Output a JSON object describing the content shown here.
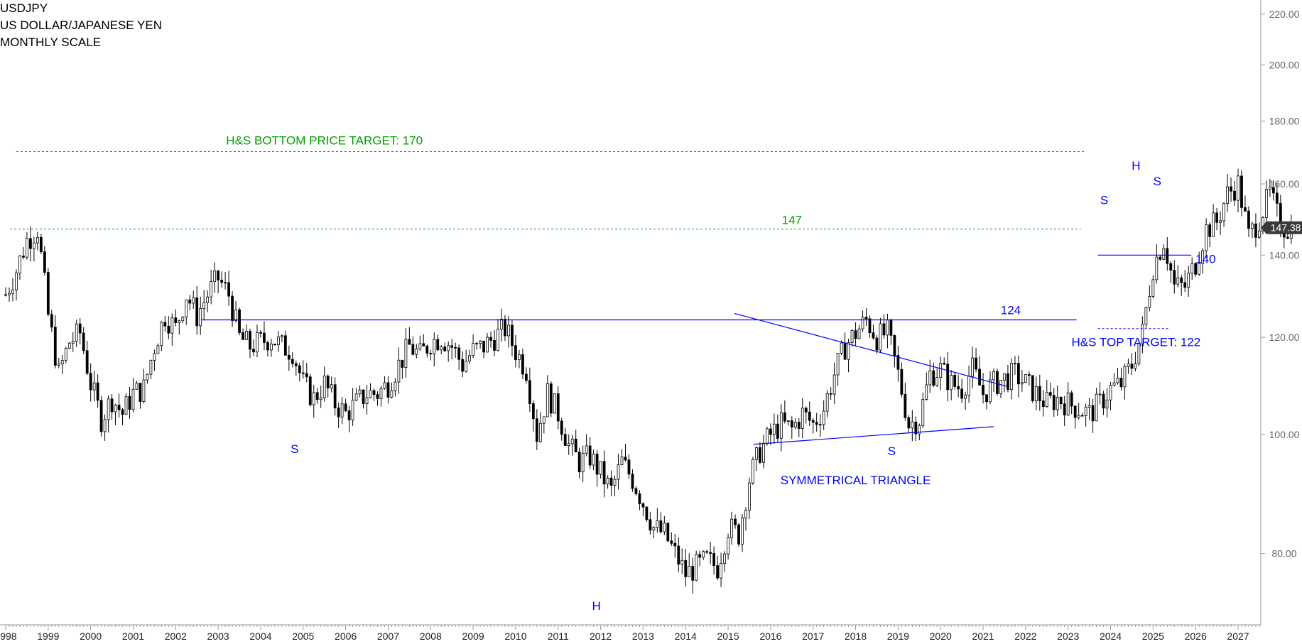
{
  "chart_data": {
    "type": "candlestick",
    "title": "USDJPY",
    "subtitle": [
      "US DOLLAR/JAPANESE YEN",
      "MONTHLY SCALE"
    ],
    "x_range": [
      1998.0,
      2027.5
    ],
    "ylim": [
      70,
      222
    ],
    "y_scale": "log",
    "y_ticks": [
      "80.00",
      "100.00",
      "120.00",
      "140.00",
      "160.00",
      "180.00",
      "200.00",
      "220.00"
    ],
    "x_ticks": [
      "1998",
      "1999",
      "2000",
      "2001",
      "2002",
      "2003",
      "2004",
      "2005",
      "2006",
      "2007",
      "2008",
      "2009",
      "2010",
      "2011",
      "2012",
      "2013",
      "2014",
      "2015",
      "2016",
      "2017",
      "2018",
      "2019",
      "2020",
      "2021",
      "2022",
      "2023",
      "2024",
      "2025",
      "2026",
      "2027"
    ],
    "last_price_label": "147.38",
    "last_price": 147.38,
    "price_path_start": 1998.0,
    "price_path_step": 0.25,
    "price_path": [
      130,
      136,
      144,
      147,
      125,
      112,
      119,
      121,
      110,
      103,
      107,
      104,
      108,
      109,
      118,
      125,
      122,
      130,
      125,
      130,
      134,
      130,
      120,
      118,
      119,
      120,
      118,
      117,
      110,
      107,
      110,
      106,
      104,
      106,
      108,
      108,
      110,
      114,
      118,
      116,
      119,
      120,
      118,
      114,
      117,
      118,
      120,
      122,
      117,
      113,
      100,
      108,
      104,
      98,
      95,
      96,
      93,
      90,
      95,
      92,
      88,
      84,
      83,
      80,
      77,
      78,
      79,
      78,
      84,
      83,
      92,
      97,
      100,
      102,
      101,
      104,
      102,
      105,
      112,
      118,
      121,
      124,
      120,
      121,
      112,
      102,
      103,
      112,
      113,
      110,
      109,
      113,
      108,
      110,
      111,
      112,
      110,
      108,
      106,
      107,
      106,
      105,
      104,
      106,
      109,
      110,
      114,
      121,
      137,
      144,
      132,
      132,
      138,
      147,
      149,
      157,
      160,
      145,
      150,
      157,
      148,
      147
    ],
    "annotations": {
      "target_170_label": "H&S BOTTOM PRICE TARGET: 170",
      "target_170_value": 170,
      "level_147_label": "147",
      "level_147_value": 147,
      "level_124_label": "124",
      "level_124_value": 124,
      "level_140_label": "140",
      "level_140_value": 140,
      "target_122_label": "H&S TOP TARGET: 122",
      "target_122_value": 122,
      "triangle_label": "SYMMETRICAL TRIANGLE",
      "left_shoulder": "S",
      "head": "H",
      "right_shoulder": "S",
      "top_left_shoulder": "S",
      "top_head": "H",
      "top_right_shoulder": "S"
    },
    "colors": {
      "candle": "#000000",
      "trendline": "#0000ff",
      "target_line": "#00a000",
      "price_tag_bg": "#3a3a3a",
      "axis": "#999999"
    }
  }
}
